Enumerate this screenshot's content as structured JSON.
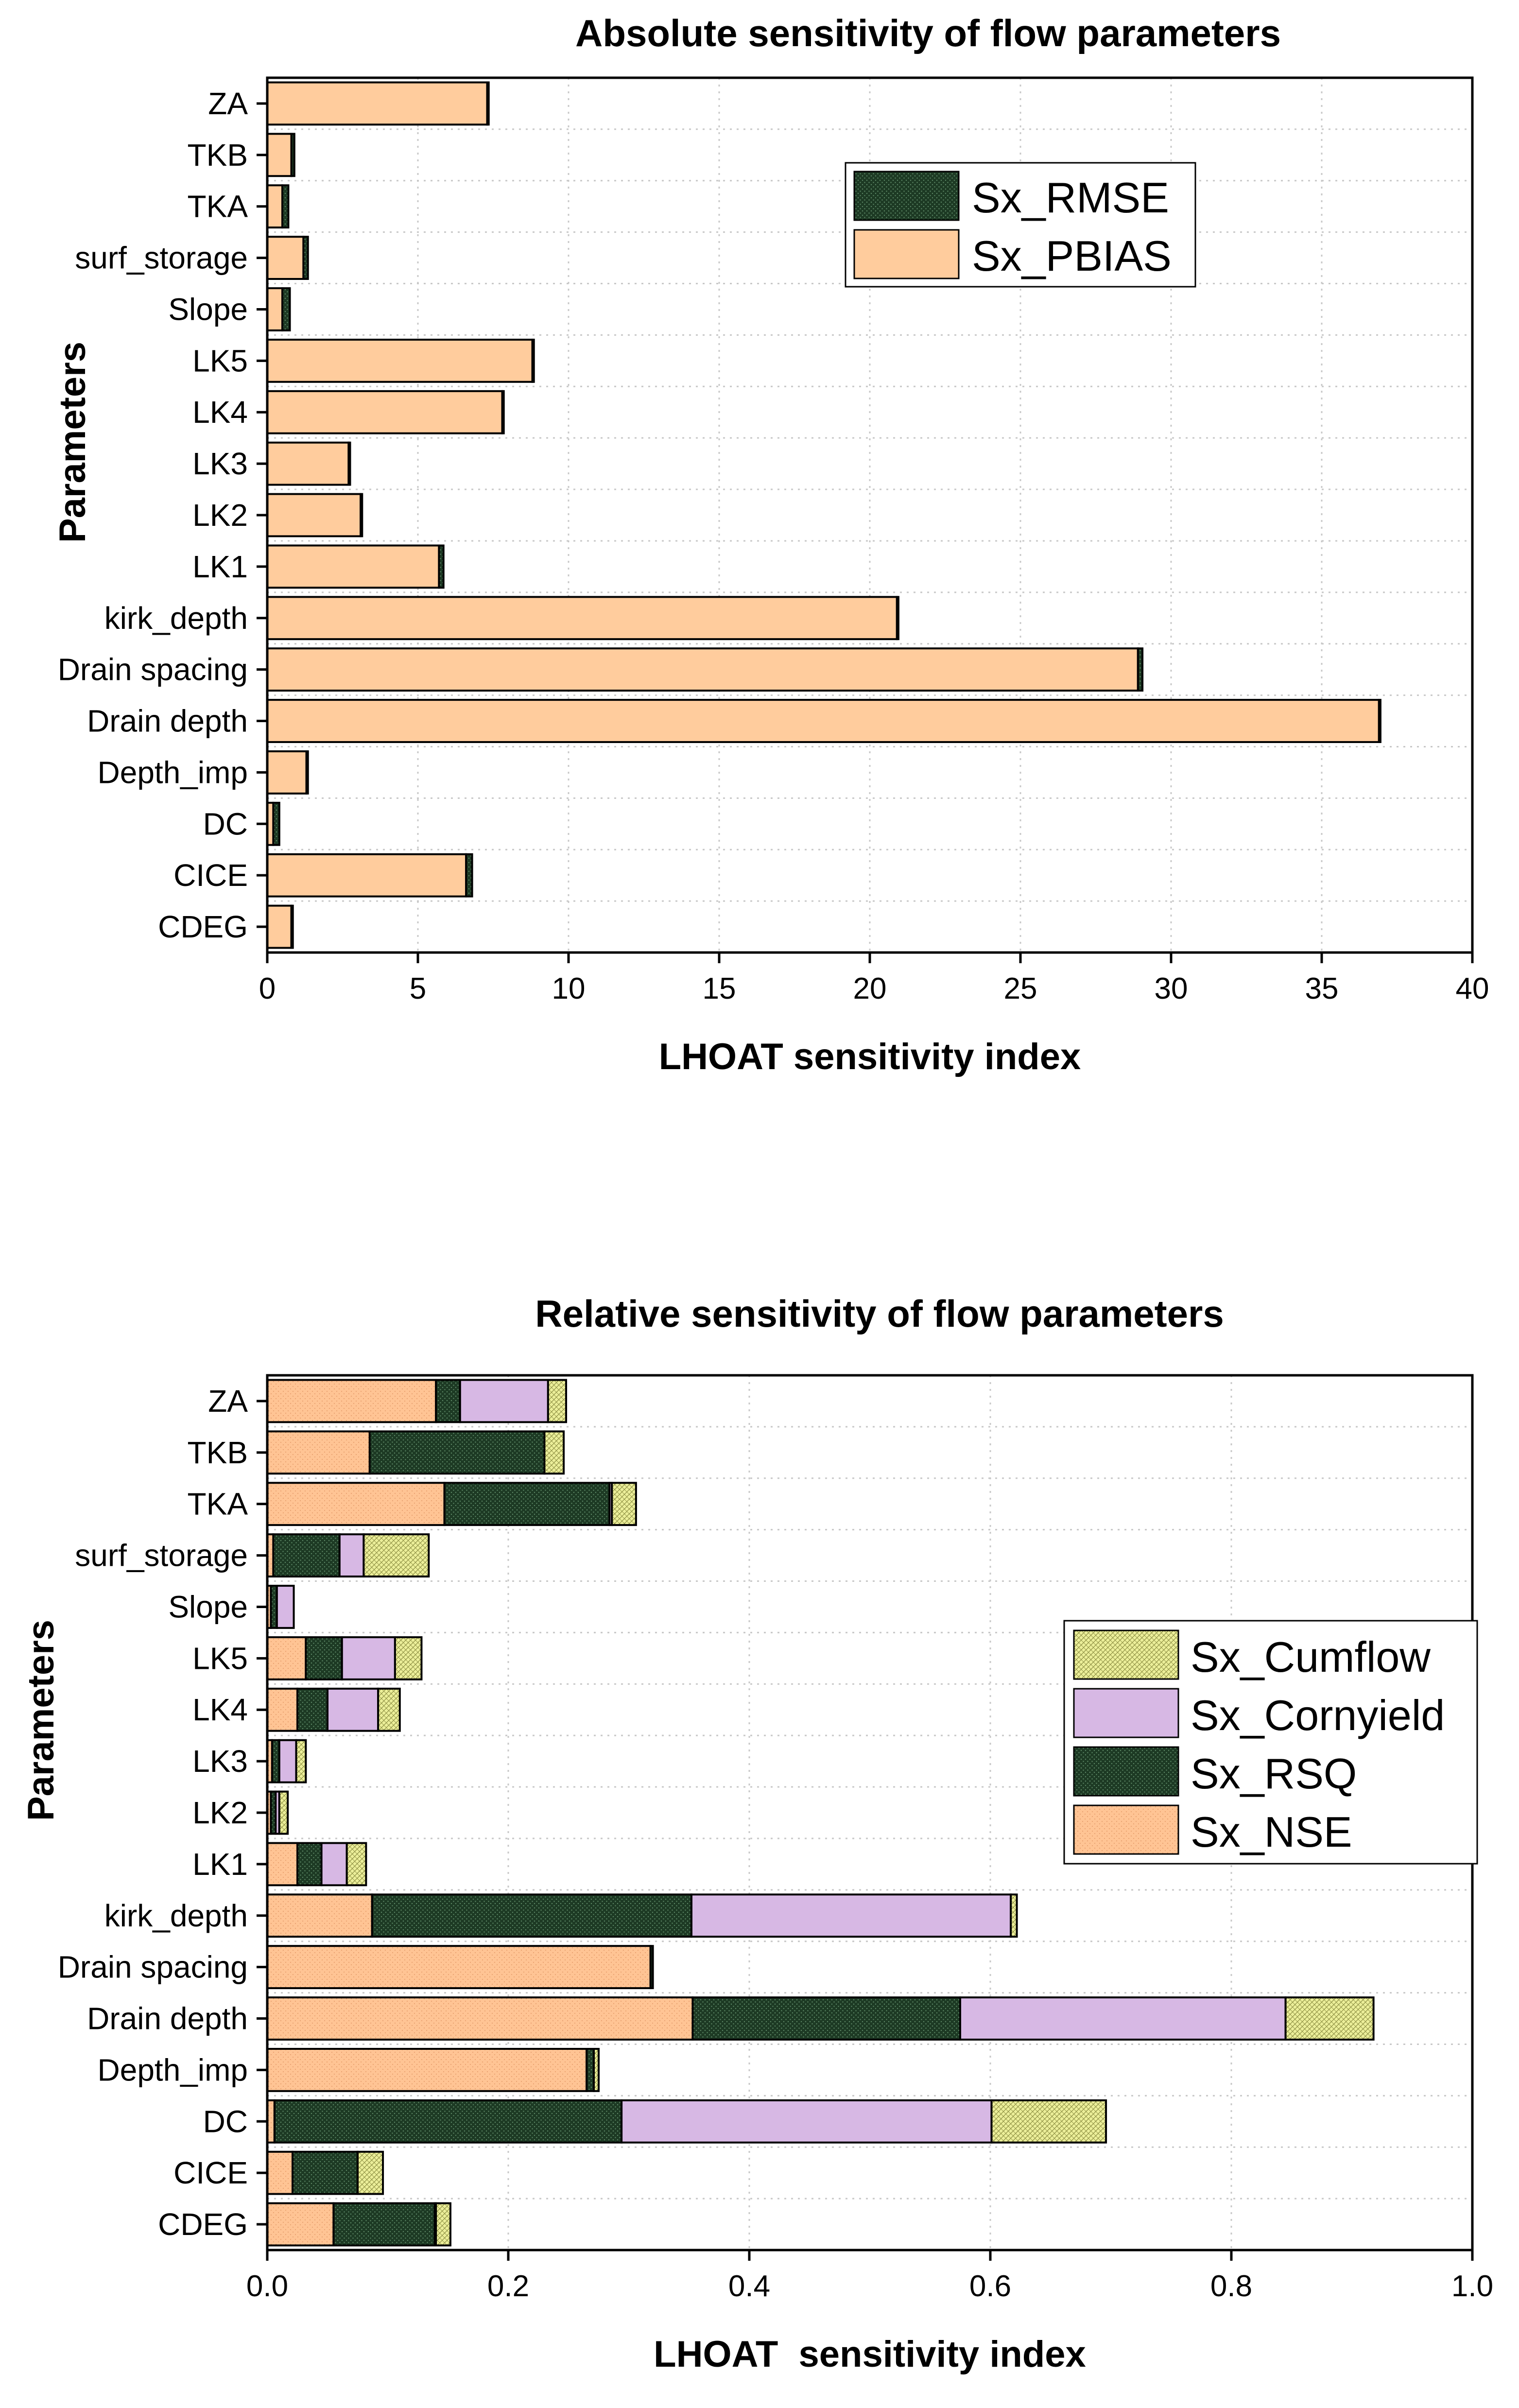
{
  "chart_data": [
    {
      "type": "bar",
      "orientation": "horizontal",
      "stacked": true,
      "title": "Absolute sensitivity of flow parameters",
      "xlabel": "LHOAT sensitivity index",
      "ylabel": "Parameters",
      "xlim": [
        0,
        40
      ],
      "xticks": [
        "0",
        "5",
        "10",
        "15",
        "20",
        "25",
        "30",
        "35",
        "40"
      ],
      "categories": [
        "ZA",
        "TKB",
        "TKA",
        "surf_storage",
        "Slope",
        "LK5",
        "LK4",
        "LK3",
        "LK2",
        "LK1",
        "kirk_depth",
        "Drain spacing",
        "Drain depth",
        "Depth_imp",
        "DC",
        "CICE",
        "CDEG"
      ],
      "series": [
        {
          "name": "Sx_PBIAS",
          "values": [
            7.3,
            0.8,
            0.5,
            1.2,
            0.5,
            8.8,
            7.8,
            2.7,
            3.1,
            5.7,
            20.9,
            28.9,
            36.9,
            1.3,
            0.2,
            6.6,
            0.8
          ]
        },
        {
          "name": "Sx_RMSE",
          "values": [
            0.05,
            0.1,
            0.2,
            0.15,
            0.25,
            0.05,
            0.05,
            0.05,
            0.05,
            0.15,
            0.05,
            0.15,
            0.05,
            0.05,
            0.2,
            0.2,
            0.05
          ]
        }
      ],
      "legend": [
        {
          "label": "Sx_RMSE",
          "color": "#1d3a24"
        },
        {
          "label": "Sx_PBIAS",
          "color": "#ffcc9d"
        }
      ],
      "legend_position": "top-right",
      "grid": true
    },
    {
      "type": "bar",
      "orientation": "horizontal",
      "stacked": true,
      "title": "Relative sensitivity of flow parameters",
      "xlabel": "LHOAT  sensitivity index",
      "ylabel": "Parameters",
      "xlim": [
        0,
        1.0
      ],
      "xticks": [
        "0.0",
        "0.2",
        "0.4",
        "0.6",
        "0.8",
        "1.0"
      ],
      "categories": [
        "ZA",
        "TKB",
        "TKA",
        "surf_storage",
        "Slope",
        "LK5",
        "LK4",
        "LK3",
        "LK2",
        "LK1",
        "kirk_depth",
        "Drain spacing",
        "Drain depth",
        "Depth_imp",
        "DC",
        "CICE",
        "CDEG"
      ],
      "series": [
        {
          "name": "Sx_NSE",
          "values": [
            0.14,
            0.085,
            0.147,
            0.005,
            0.003,
            0.032,
            0.025,
            0.004,
            0.003,
            0.025,
            0.087,
            0.318,
            0.353,
            0.265,
            0.006,
            0.021,
            0.055
          ]
        },
        {
          "name": "Sx_RSQ",
          "values": [
            0.02,
            0.145,
            0.137,
            0.055,
            0.005,
            0.03,
            0.025,
            0.006,
            0.004,
            0.02,
            0.265,
            0.002,
            0.222,
            0.006,
            0.288,
            0.054,
            0.084
          ]
        },
        {
          "name": "Sx_Cornyield",
          "values": [
            0.073,
            0.0,
            0.002,
            0.02,
            0.014,
            0.044,
            0.042,
            0.014,
            0.003,
            0.021,
            0.265,
            0.0,
            0.27,
            0.0,
            0.307,
            0.0,
            0.001
          ]
        },
        {
          "name": "Sx_Cumflow",
          "values": [
            0.015,
            0.016,
            0.02,
            0.054,
            0.0,
            0.022,
            0.018,
            0.008,
            0.007,
            0.016,
            0.005,
            0.0,
            0.073,
            0.004,
            0.095,
            0.021,
            0.012
          ]
        }
      ],
      "legend": [
        {
          "label": "Sx_Cumflow",
          "color": "#ecef9a"
        },
        {
          "label": "Sx_Cornyield",
          "color": "#d7b8e4"
        },
        {
          "label": "Sx_RSQ",
          "color": "#1d3a24"
        },
        {
          "label": "Sx_NSE",
          "color": "#ffc494"
        }
      ],
      "legend_position": "right",
      "grid": true
    }
  ]
}
